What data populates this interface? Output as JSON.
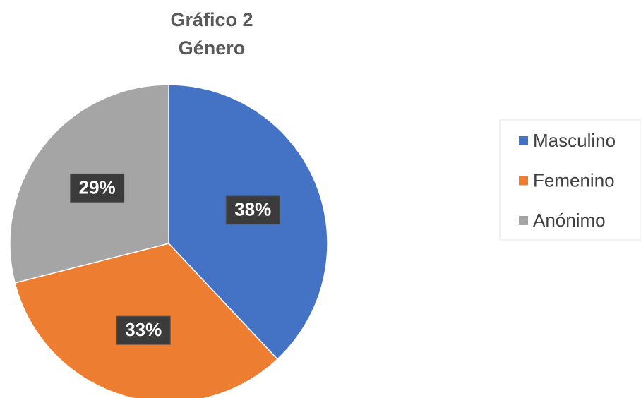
{
  "chart_data": {
    "type": "pie",
    "title": "Gráfico 2",
    "subtitle": "Género",
    "categories": [
      "Masculino",
      "Femenino",
      "Anónimo"
    ],
    "values": [
      38,
      33,
      29
    ],
    "value_labels": [
      "38%",
      "33%",
      "29%"
    ],
    "colors": [
      "#4472c4",
      "#ed7d31",
      "#a5a5a5"
    ],
    "legend": "right"
  }
}
